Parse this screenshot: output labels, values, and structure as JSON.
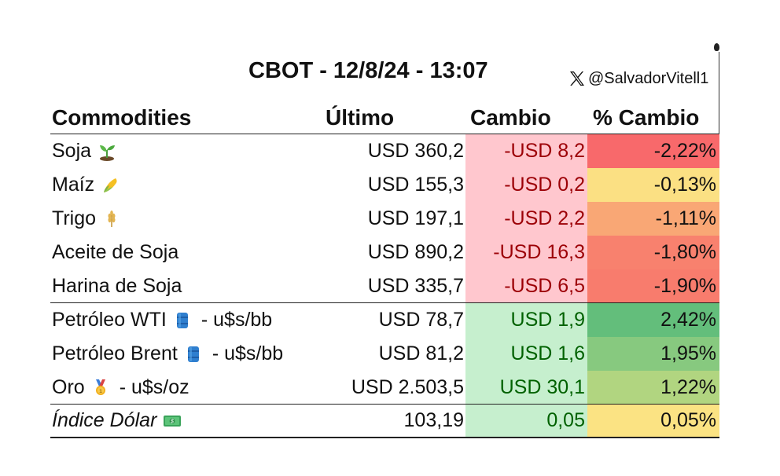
{
  "title": "CBOT - 12/8/24 - 13:07",
  "handle": "@SalvadorVitell1",
  "headers": {
    "commodities": "Commodities",
    "ultimo": "Último",
    "cambio": "Cambio",
    "pct_cambio": "% Cambio"
  },
  "rows": [
    {
      "name": "Soja",
      "icon": "seedling-icon",
      "suffix": "",
      "ultimo": "USD 360,2",
      "cambio": "-USD 8,2",
      "pct": "-2,22%",
      "pct_color": "#f8696b",
      "cambio_color": "#ffc7ce"
    },
    {
      "name": "Maíz",
      "icon": "corn-icon",
      "suffix": "",
      "ultimo": "USD 155,3",
      "cambio": "-USD 0,2",
      "pct": "-0,13%",
      "pct_color": "#fbe083",
      "cambio_color": "#ffc7ce"
    },
    {
      "name": "Trigo",
      "icon": "wheat-icon",
      "suffix": "",
      "ultimo": "USD 197,1",
      "cambio": "-USD 2,2",
      "pct": "-1,11%",
      "pct_color": "#f9a775",
      "cambio_color": "#ffc7ce"
    },
    {
      "name": "Aceite de Soja",
      "icon": "",
      "suffix": "",
      "ultimo": "USD 890,2",
      "cambio": "-USD 16,3",
      "pct": "-1,80%",
      "pct_color": "#f8816e",
      "cambio_color": "#ffc7ce"
    },
    {
      "name": "Harina de Soja",
      "icon": "",
      "suffix": "",
      "ultimo": "USD 335,7",
      "cambio": "-USD 6,5",
      "pct": "-1,90%",
      "pct_color": "#f87c6d",
      "cambio_color": "#ffc7ce"
    },
    {
      "name": "Petróleo WTI",
      "icon": "oil-barrel-icon",
      "suffix": "- u$s/bb",
      "ultimo": "USD 78,7",
      "cambio": "USD 1,9",
      "pct": "2,42%",
      "pct_color": "#63be7b",
      "cambio_color": "#c6efce"
    },
    {
      "name": "Petróleo Brent",
      "icon": "oil-barrel-icon",
      "suffix": "- u$s/bb",
      "ultimo": "USD 81,2",
      "cambio": "USD 1,6",
      "pct": "1,95%",
      "pct_color": "#87c97f",
      "cambio_color": "#c6efce"
    },
    {
      "name": "Oro",
      "icon": "gold-medal-icon",
      "suffix": "- u$s/oz",
      "ultimo": "USD 2.503,5",
      "cambio": "USD 30,1",
      "pct": "1,22%",
      "pct_color": "#b1d580",
      "cambio_color": "#c6efce"
    },
    {
      "name": "Índice Dólar",
      "icon": "dollar-banknote-icon",
      "suffix": "",
      "ultimo": "103,19",
      "cambio": "0,05",
      "pct": "0,05%",
      "pct_color": "#fbe383",
      "cambio_color": "#c6efce"
    }
  ]
}
